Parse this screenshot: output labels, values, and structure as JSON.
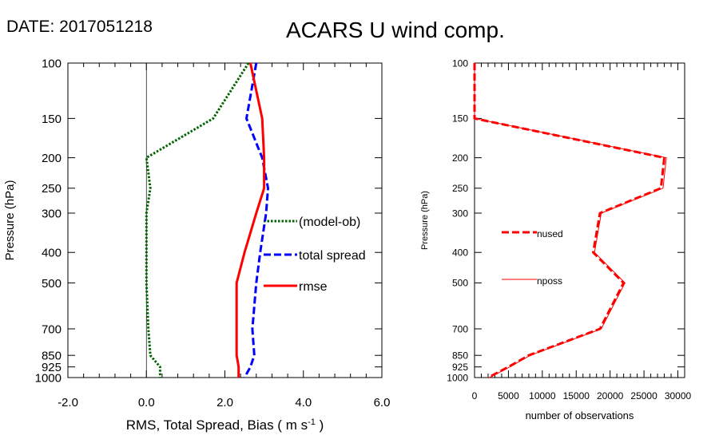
{
  "header": {
    "date_label": "DATE: 2017051218",
    "title": "ACARS U wind comp."
  },
  "chart_data": [
    {
      "type": "line",
      "name": "error-profile",
      "xlabel": "RMS, Total Spread, Bias ( m s",
      "xlabel_exp": "-1",
      "xlabel_tail": " )",
      "ylabel": "Pressure (hPa)",
      "xlim": [
        -2.0,
        6.0
      ],
      "x_ticks": [
        -2.0,
        0.0,
        2.0,
        4.0,
        6.0
      ],
      "x_tick_labels": [
        "-2.0",
        "0.0",
        "2.0",
        "4.0",
        "6.0"
      ],
      "ylim": [
        1000,
        100
      ],
      "y_scale": "log",
      "y_ticks": [
        100,
        150,
        200,
        250,
        300,
        400,
        500,
        700,
        850,
        925,
        1000
      ],
      "y_tick_labels": [
        "100",
        "150",
        "200",
        "250",
        "300",
        "400",
        "500",
        "700",
        "850",
        "925",
        "1000"
      ],
      "zero_line": 0.0,
      "series": [
        {
          "name": "(model-ob)",
          "color": "#006400",
          "dash": "dotted",
          "points": [
            [
              2.6,
              100
            ],
            [
              1.7,
              150
            ],
            [
              0.0,
              200
            ],
            [
              0.1,
              250
            ],
            [
              0.0,
              300
            ],
            [
              0.0,
              400
            ],
            [
              0.0,
              500
            ],
            [
              0.05,
              700
            ],
            [
              0.1,
              850
            ],
            [
              0.35,
              925
            ],
            [
              0.35,
              1000
            ]
          ]
        },
        {
          "name": "total spread",
          "color": "#0000ff",
          "dash": "dashed",
          "points": [
            [
              2.8,
              100
            ],
            [
              2.55,
              150
            ],
            [
              2.95,
              200
            ],
            [
              3.1,
              250
            ],
            [
              3.05,
              300
            ],
            [
              2.9,
              400
            ],
            [
              2.8,
              500
            ],
            [
              2.7,
              700
            ],
            [
              2.75,
              850
            ],
            [
              2.65,
              925
            ],
            [
              2.5,
              1000
            ]
          ]
        },
        {
          "name": "rmse",
          "color": "#ff0000",
          "dash": "solid",
          "points": [
            [
              2.65,
              100
            ],
            [
              2.95,
              150
            ],
            [
              3.0,
              200
            ],
            [
              3.0,
              250
            ],
            [
              2.8,
              300
            ],
            [
              2.5,
              400
            ],
            [
              2.3,
              500
            ],
            [
              2.3,
              700
            ],
            [
              2.3,
              850
            ],
            [
              2.35,
              925
            ],
            [
              2.35,
              1000
            ]
          ]
        }
      ]
    },
    {
      "type": "line",
      "name": "observation-count",
      "xlabel": "number of observations",
      "ylabel": "Pressure (hPa)",
      "xlim": [
        0,
        31000
      ],
      "x_ticks": [
        0,
        5000,
        10000,
        15000,
        20000,
        25000,
        30000
      ],
      "x_tick_labels": [
        "0",
        "5000",
        "10000",
        "15000",
        "20000",
        "25000",
        "30000"
      ],
      "ylim": [
        1000,
        100
      ],
      "y_scale": "log",
      "y_ticks": [
        100,
        150,
        200,
        250,
        300,
        400,
        500,
        700,
        850,
        925,
        1000
      ],
      "y_tick_labels": [
        "100",
        "150",
        "200",
        "250",
        "300",
        "400",
        "500",
        "700",
        "850",
        "925",
        "1000"
      ],
      "series": [
        {
          "name": "nused",
          "color": "#ff0000",
          "dash": "dashed",
          "points": [
            [
              0,
              100
            ],
            [
              0,
              150
            ],
            [
              28000,
              200
            ],
            [
              27500,
              250
            ],
            [
              18500,
              300
            ],
            [
              17500,
              400
            ],
            [
              22000,
              500
            ],
            [
              18500,
              700
            ],
            [
              8000,
              850
            ],
            [
              5000,
              925
            ],
            [
              2000,
              1000
            ]
          ]
        },
        {
          "name": "nposs",
          "color": "#ff0000",
          "dash": "thin",
          "points": [
            [
              0,
              100
            ],
            [
              0,
              150
            ],
            [
              28300,
              200
            ],
            [
              27800,
              250
            ],
            [
              18700,
              300
            ],
            [
              17700,
              400
            ],
            [
              22200,
              500
            ],
            [
              18700,
              700
            ],
            [
              8200,
              850
            ],
            [
              5200,
              925
            ],
            [
              2200,
              1000
            ]
          ]
        }
      ]
    }
  ]
}
